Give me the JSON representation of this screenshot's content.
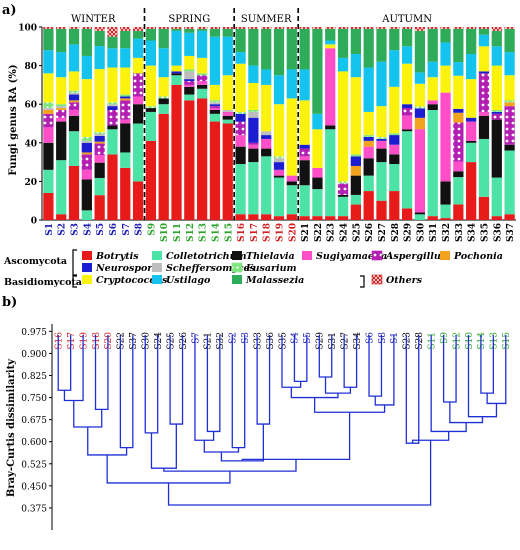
{
  "panel_a_label": "a)",
  "panel_b_label": "b)",
  "chart_data": [
    {
      "type": "bar",
      "stacked": true,
      "ylabel": "Fungi genus RA (%)",
      "ylim": [
        0,
        100
      ],
      "yticks": [
        0,
        20,
        40,
        60,
        80,
        100
      ],
      "seasons": [
        "WINTER",
        "SPRING",
        "SUMMER",
        "AUTUMN"
      ],
      "season_sizes": [
        8,
        7,
        5,
        17
      ],
      "categories": [
        "S1",
        "S2",
        "S3",
        "S4",
        "S5",
        "S6",
        "S7",
        "S8",
        "S9",
        "S10",
        "S11",
        "S12",
        "S13",
        "S14",
        "S15",
        "S16",
        "S17",
        "S18",
        "S19",
        "S20",
        "S21",
        "S22",
        "S23",
        "S24",
        "S25",
        "S26",
        "S27",
        "S28",
        "S29",
        "S30",
        "S31",
        "S32",
        "S33",
        "S34",
        "S35",
        "S36",
        "S37"
      ],
      "category_colors": [
        "#1a1ab4",
        "#1a1ab4",
        "#1a1ab4",
        "#1a1ab4",
        "#1a1ab4",
        "#1a1ab4",
        "#1a1ab4",
        "#1a1ab4",
        "#2aa52a",
        "#2aa52a",
        "#2aa52a",
        "#2aa52a",
        "#2aa52a",
        "#2aa52a",
        "#2aa52a",
        "#d42020",
        "#d42020",
        "#d42020",
        "#d42020",
        "#d42020",
        "#000000",
        "#000000",
        "#000000",
        "#000000",
        "#000000",
        "#000000",
        "#000000",
        "#000000",
        "#000000",
        "#000000",
        "#000000",
        "#000000",
        "#000000",
        "#000000",
        "#000000",
        "#000000",
        "#000000"
      ],
      "legend": {
        "groups": [
          {
            "label": "Ascomycota",
            "rows": [
              [
                0,
                1,
                2,
                3,
                4,
                5
              ],
              [
                6,
                7,
                8
              ]
            ]
          },
          {
            "label": "Basidiomycota",
            "rows": [
              [
                9,
                10,
                11
              ]
            ]
          }
        ],
        "others_index": 12
      },
      "series": [
        {
          "name": "Botrytis",
          "color": "#e81b1b",
          "pattern": "solid",
          "values": [
            14,
            3,
            28,
            0,
            13,
            34,
            27,
            20,
            41,
            55,
            70,
            62,
            63,
            51,
            50,
            3,
            3,
            3,
            2,
            3,
            2,
            2,
            2,
            2,
            8,
            15,
            10,
            15,
            6,
            0,
            2,
            1,
            8,
            30,
            12,
            2,
            3
          ]
        },
        {
          "name": "Colletotrichum",
          "color": "#4ee3a6",
          "pattern": "solid",
          "values": [
            12,
            28,
            18,
            5,
            9,
            13,
            8,
            30,
            15,
            5,
            5,
            3,
            5,
            4,
            2,
            26,
            27,
            30,
            20,
            15,
            16,
            14,
            45,
            10,
            5,
            8,
            20,
            14,
            40,
            3,
            55,
            7,
            14,
            10,
            30,
            20,
            33
          ]
        },
        {
          "name": "Thielavia",
          "color": "#111111",
          "pattern": "solid",
          "values": [
            14,
            20,
            8,
            16,
            8,
            2,
            15,
            10,
            2,
            3,
            1,
            4,
            2,
            2,
            2,
            9,
            7,
            4,
            1,
            2,
            13,
            6,
            2,
            1,
            10,
            9,
            7,
            5,
            1,
            1,
            3,
            12,
            3,
            1,
            12,
            30,
            3
          ]
        },
        {
          "name": "Sugiyamaella",
          "color": "#ff4fc8",
          "pattern": "solid",
          "values": [
            8,
            2,
            3,
            5,
            4,
            0,
            2,
            4,
            0,
            0,
            0,
            1,
            2,
            1,
            2,
            6,
            2,
            5,
            3,
            3,
            2,
            5,
            40,
            0,
            0,
            6,
            4,
            5,
            7,
            44,
            2,
            46,
            5,
            10,
            2,
            0,
            0
          ]
        },
        {
          "name": "Aspergillus",
          "color": "#b21fb2",
          "pattern": "dots",
          "values": [
            7,
            4,
            4,
            8,
            6,
            8,
            10,
            12,
            0,
            0,
            0,
            2,
            3,
            1,
            0,
            7,
            1,
            0,
            0,
            0,
            4,
            0,
            0,
            6,
            0,
            0,
            0,
            0,
            4,
            0,
            0,
            0,
            20,
            0,
            20,
            3,
            20
          ]
        },
        {
          "name": "Pochonia",
          "color": "#f3a21e",
          "pattern": "solid",
          "values": [
            2,
            1,
            1,
            1,
            1,
            0,
            1,
            0,
            0,
            0,
            0,
            0,
            0,
            0,
            0,
            0,
            0,
            0,
            0,
            0,
            0,
            0,
            0,
            0,
            5,
            3,
            0,
            0,
            0,
            6,
            0,
            0,
            5,
            0,
            0,
            0,
            2
          ]
        },
        {
          "name": "Neurospora",
          "color": "#1c1cd0",
          "pattern": "solid",
          "values": [
            0,
            0,
            3,
            5,
            3,
            2,
            1,
            0,
            0,
            0,
            1,
            1,
            0,
            1,
            0,
            4,
            13,
            2,
            4,
            0,
            2,
            0,
            0,
            0,
            5,
            2,
            1,
            5,
            2,
            5,
            0,
            0,
            2,
            2,
            1,
            1,
            0
          ]
        },
        {
          "name": "Scheffersomyces",
          "color": "#bdbdbd",
          "pattern": "solid",
          "values": [
            1,
            1,
            1,
            1,
            1,
            1,
            0,
            0,
            0,
            0,
            0,
            4,
            0,
            1,
            1,
            0,
            3,
            2,
            2,
            0,
            0,
            0,
            0,
            0,
            0,
            0,
            0,
            0,
            0,
            0,
            0,
            0,
            0,
            0,
            0,
            0,
            0
          ]
        },
        {
          "name": "Fusarium",
          "color": "#7fe57f",
          "pattern": "dots",
          "values": [
            3,
            1,
            1,
            2,
            1,
            1,
            1,
            0,
            1,
            1,
            0,
            1,
            1,
            1,
            0,
            1,
            1,
            0,
            1,
            0,
            0,
            0,
            0,
            1,
            1,
            1,
            1,
            1,
            0,
            1,
            0,
            0,
            0,
            0,
            0,
            1,
            1
          ]
        },
        {
          "name": "Cryptococcus",
          "color": "#fbf20e",
          "pattern": "solid",
          "values": [
            15,
            14,
            10,
            30,
            33,
            18,
            14,
            8,
            21,
            10,
            3,
            7,
            8,
            8,
            18,
            25,
            14,
            24,
            27,
            40,
            23,
            20,
            2,
            57,
            40,
            12,
            16,
            24,
            21,
            12,
            12,
            14,
            17,
            20,
            13,
            23,
            13
          ]
        },
        {
          "name": "Ustilago",
          "color": "#14c3ee",
          "pattern": "solid",
          "values": [
            12,
            13,
            14,
            12,
            12,
            10,
            10,
            10,
            13,
            15,
            18,
            12,
            14,
            25,
            20,
            6,
            9,
            8,
            15,
            15,
            16,
            8,
            2,
            7,
            12,
            23,
            23,
            19,
            9,
            6,
            8,
            12,
            7,
            13,
            6,
            10,
            12
          ]
        },
        {
          "name": "Malassezia",
          "color": "#2eac5a",
          "pattern": "solid",
          "values": [
            11,
            12,
            8,
            14,
            8,
            6,
            9,
            4,
            6,
            10,
            1,
            2,
            1,
            4,
            4,
            12,
            19,
            21,
            24,
            21,
            21,
            44,
            6,
            15,
            13,
            20,
            17,
            11,
            9,
            22,
            17,
            7,
            17,
            13,
            3,
            8,
            12
          ]
        },
        {
          "name": "Others",
          "color": "#d32020",
          "pattern": "xpattern",
          "values": [
            1,
            1,
            1,
            1,
            2,
            5,
            2,
            2,
            1,
            1,
            1,
            1,
            1,
            1,
            1,
            1,
            1,
            1,
            1,
            1,
            1,
            1,
            1,
            1,
            1,
            1,
            1,
            1,
            1,
            2,
            1,
            1,
            1,
            1,
            1,
            2,
            1
          ]
        }
      ]
    },
    {
      "type": "dendrogram",
      "ylabel": "Bray-Curtis dissimilarity",
      "ylim": [
        0.3,
        1.0
      ],
      "yticks": [
        "0.975",
        "0.900",
        "0.825",
        "0.750",
        "0.675",
        "0.600",
        "0.525",
        "0.450",
        "0.375"
      ],
      "leaves": [
        "S16",
        "S17",
        "S19",
        "S18",
        "S20",
        "S22",
        "S37",
        "S30",
        "S24",
        "S25",
        "S26",
        "S7",
        "S21",
        "S32",
        "S2",
        "S3",
        "S33",
        "S36",
        "S35",
        "S4",
        "S5",
        "S29",
        "S31",
        "S27",
        "S34",
        "S6",
        "S8",
        "S1",
        "S23",
        "S28",
        "S11",
        "S9",
        "S12",
        "S10",
        "S14",
        "S13",
        "S15"
      ],
      "leaf_colors": [
        "#d42020",
        "#d42020",
        "#d42020",
        "#d42020",
        "#d42020",
        "#000000",
        "#000000",
        "#000000",
        "#000000",
        "#000000",
        "#000000",
        "#1a1ab4",
        "#000000",
        "#000000",
        "#1a1ab4",
        "#1a1ab4",
        "#000000",
        "#000000",
        "#000000",
        "#1a1ab4",
        "#1a1ab4",
        "#000000",
        "#000000",
        "#000000",
        "#000000",
        "#1a1ab4",
        "#1a1ab4",
        "#1a1ab4",
        "#000000",
        "#000000",
        "#2aa52a",
        "#2aa52a",
        "#2aa52a",
        "#2aa52a",
        "#2aa52a",
        "#2aa52a",
        "#2aa52a"
      ],
      "merges": [
        [
          0,
          1,
          0.775
        ],
        [
          37,
          2,
          0.74
        ],
        [
          3,
          4,
          0.71
        ],
        [
          38,
          39,
          0.65
        ],
        [
          5,
          6,
          0.58
        ],
        [
          40,
          41,
          0.555
        ],
        [
          7,
          8,
          0.63
        ],
        [
          9,
          10,
          0.66
        ],
        [
          43,
          44,
          0.51
        ],
        [
          12,
          13,
          0.635
        ],
        [
          11,
          46,
          0.605
        ],
        [
          14,
          15,
          0.58
        ],
        [
          47,
          48,
          0.565
        ],
        [
          16,
          17,
          0.66
        ],
        [
          49,
          50,
          0.535
        ],
        [
          19,
          20,
          0.805
        ],
        [
          18,
          52,
          0.785
        ],
        [
          21,
          22,
          0.82
        ],
        [
          23,
          24,
          0.785
        ],
        [
          54,
          55,
          0.765
        ],
        [
          53,
          56,
          0.75
        ],
        [
          25,
          26,
          0.755
        ],
        [
          27,
          58,
          0.725
        ],
        [
          57,
          59,
          0.7
        ],
        [
          51,
          60,
          0.54
        ],
        [
          45,
          61,
          0.5
        ],
        [
          42,
          62,
          0.46
        ],
        [
          28,
          29,
          0.595
        ],
        [
          31,
          32,
          0.735
        ],
        [
          34,
          35,
          0.765
        ],
        [
          36,
          66,
          0.73
        ],
        [
          33,
          67,
          0.685
        ],
        [
          65,
          68,
          0.665
        ],
        [
          30,
          69,
          0.635
        ],
        [
          64,
          70,
          0.605
        ],
        [
          63,
          71,
          0.385
        ]
      ]
    }
  ]
}
